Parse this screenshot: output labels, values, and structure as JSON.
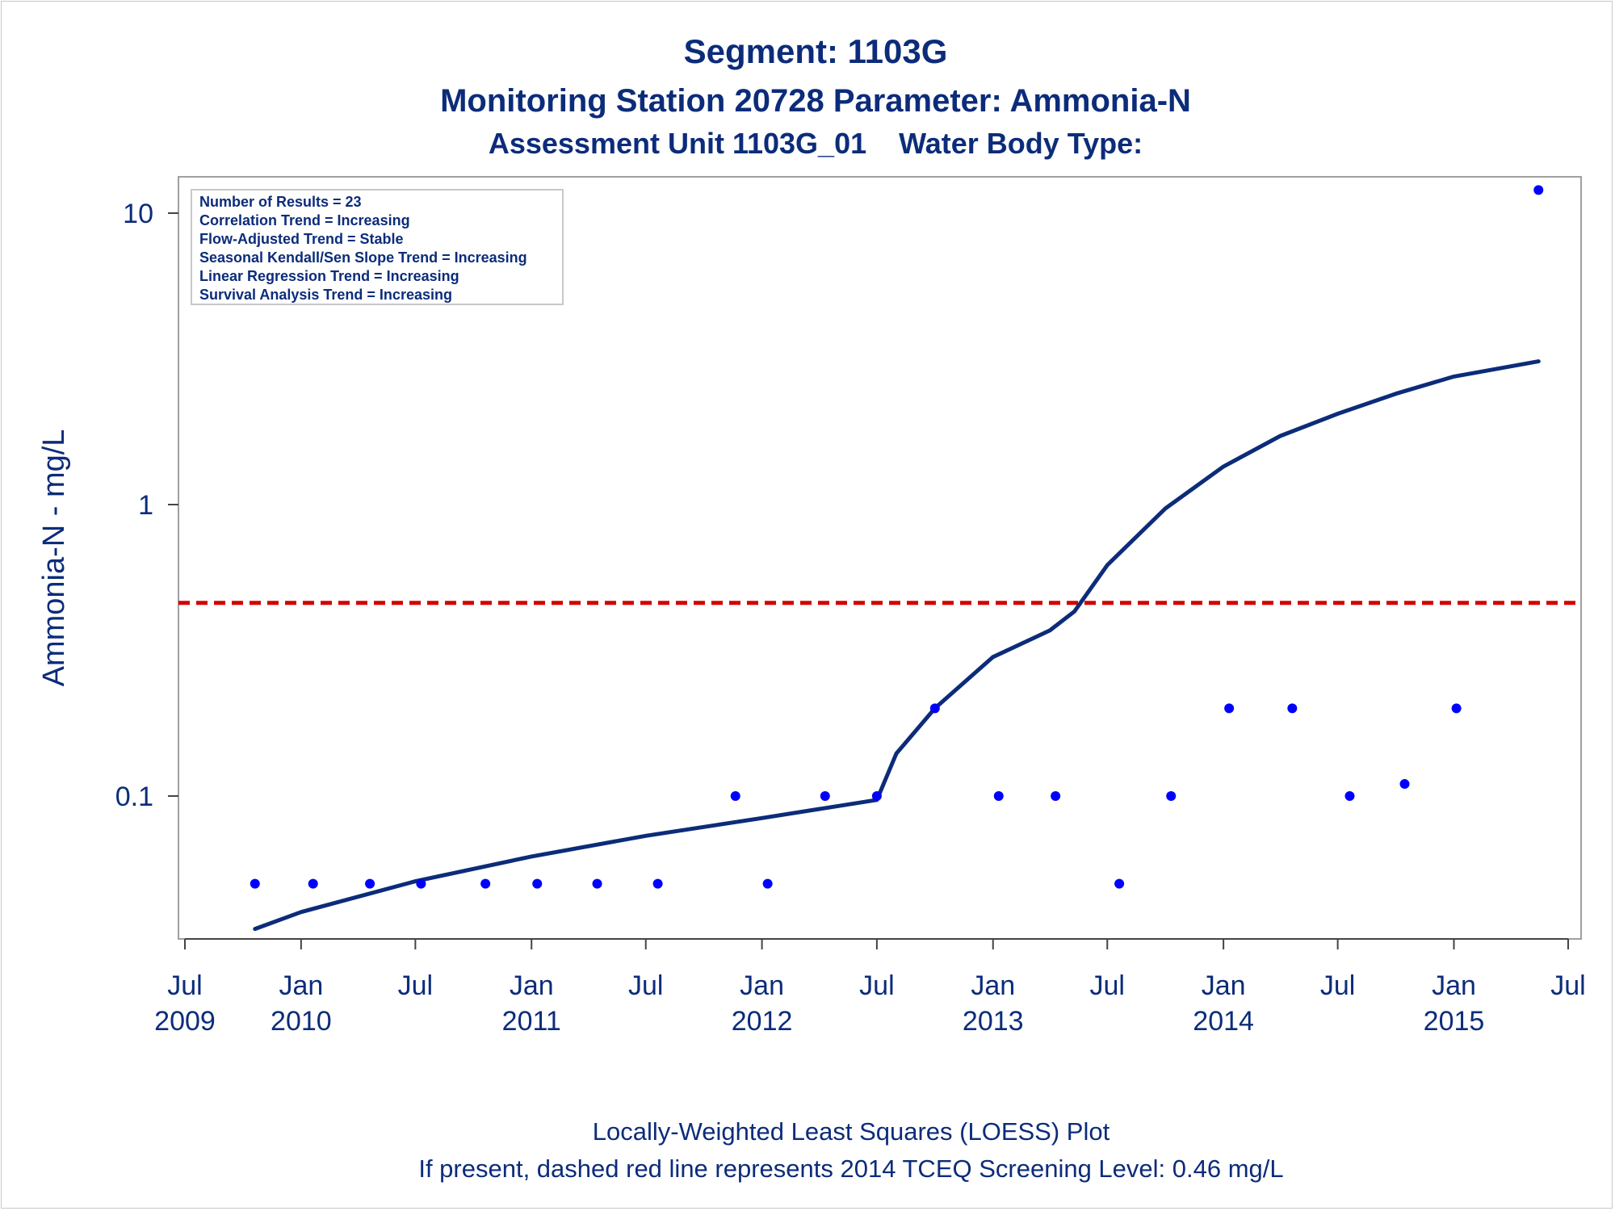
{
  "titles": {
    "line1": "Segment: 1103G",
    "line2": "Monitoring Station 20728 Parameter: Ammonia-N",
    "line3": "Assessment Unit 1103G_01    Water Body Type:"
  },
  "inset": [
    "Number of Results = 23",
    "Correlation Trend = Increasing",
    "Flow-Adjusted Trend = Stable",
    "Seasonal Kendall/Sen Slope Trend = Increasing",
    "Linear Regression Trend = Increasing",
    "Survival Analysis Trend = Increasing"
  ],
  "footnotes": [
    "Locally-Weighted Least Squares (LOESS) Plot",
    "If present, dashed red line represents 2014 TCEQ Screening Level: 0.46 mg/L"
  ],
  "colors": {
    "title": "#0c2c7a",
    "points": "#0000ff",
    "loess": "#0c2c7a",
    "reference": "#d40000",
    "frame": "#a0a0a0"
  },
  "chart_data": {
    "type": "scatter",
    "ylabel": "Ammonia-N - mg/L",
    "xlabel": "",
    "y_scale": "log",
    "ylim": [
      0.032,
      13
    ],
    "xlim": [
      "2009-07-01",
      "2015-07-01"
    ],
    "x_ticks": [
      {
        "date": "2009-07-01",
        "month": "Jul",
        "year": "2009"
      },
      {
        "date": "2010-01-01",
        "month": "Jan",
        "year": "2010"
      },
      {
        "date": "2010-07-01",
        "month": "Jul",
        "year": ""
      },
      {
        "date": "2011-01-01",
        "month": "Jan",
        "year": "2011"
      },
      {
        "date": "2011-07-01",
        "month": "Jul",
        "year": ""
      },
      {
        "date": "2012-01-01",
        "month": "Jan",
        "year": "2012"
      },
      {
        "date": "2012-07-01",
        "month": "Jul",
        "year": ""
      },
      {
        "date": "2013-01-01",
        "month": "Jan",
        "year": "2013"
      },
      {
        "date": "2013-07-01",
        "month": "Jul",
        "year": ""
      },
      {
        "date": "2014-01-01",
        "month": "Jan",
        "year": "2014"
      },
      {
        "date": "2014-07-01",
        "month": "Jul",
        "year": ""
      },
      {
        "date": "2015-01-01",
        "month": "Jan",
        "year": "2015"
      },
      {
        "date": "2015-07-01",
        "month": "Jul",
        "year": ""
      }
    ],
    "y_ticks": [
      {
        "value": 0.1,
        "label": "0.1"
      },
      {
        "value": 1,
        "label": "1"
      },
      {
        "value": 10,
        "label": "10"
      }
    ],
    "reference_line": {
      "y": 0.46,
      "style": "dashed",
      "color": "#d40000"
    },
    "series": [
      {
        "type": "scatter",
        "points": [
          {
            "x": "2009-10-20",
            "y": 0.05
          },
          {
            "x": "2010-01-20",
            "y": 0.05
          },
          {
            "x": "2010-04-20",
            "y": 0.05
          },
          {
            "x": "2010-07-10",
            "y": 0.05
          },
          {
            "x": "2010-10-20",
            "y": 0.05
          },
          {
            "x": "2011-01-10",
            "y": 0.05
          },
          {
            "x": "2011-04-15",
            "y": 0.05
          },
          {
            "x": "2011-07-20",
            "y": 0.05
          },
          {
            "x": "2011-11-20",
            "y": 0.1
          },
          {
            "x": "2012-01-10",
            "y": 0.05
          },
          {
            "x": "2012-04-10",
            "y": 0.1
          },
          {
            "x": "2012-07-01",
            "y": 0.1
          },
          {
            "x": "2012-10-01",
            "y": 0.2
          },
          {
            "x": "2013-01-10",
            "y": 0.1
          },
          {
            "x": "2013-04-10",
            "y": 0.1
          },
          {
            "x": "2013-07-20",
            "y": 0.05
          },
          {
            "x": "2013-10-10",
            "y": 0.1
          },
          {
            "x": "2014-01-10",
            "y": 0.2
          },
          {
            "x": "2014-04-20",
            "y": 0.2
          },
          {
            "x": "2014-07-20",
            "y": 0.1
          },
          {
            "x": "2014-10-15",
            "y": 0.11
          },
          {
            "x": "2015-01-05",
            "y": 0.2
          },
          {
            "x": "2015-05-15",
            "y": 12
          }
        ]
      },
      {
        "type": "line",
        "points": [
          {
            "x": "2009-10-20",
            "y": 0.035
          },
          {
            "x": "2010-01-01",
            "y": 0.04
          },
          {
            "x": "2010-07-01",
            "y": 0.051
          },
          {
            "x": "2011-01-01",
            "y": 0.062
          },
          {
            "x": "2011-07-01",
            "y": 0.073
          },
          {
            "x": "2012-01-01",
            "y": 0.084
          },
          {
            "x": "2012-07-01",
            "y": 0.097
          },
          {
            "x": "2012-08-01",
            "y": 0.14
          },
          {
            "x": "2012-10-01",
            "y": 0.2
          },
          {
            "x": "2013-01-01",
            "y": 0.3
          },
          {
            "x": "2013-04-01",
            "y": 0.37
          },
          {
            "x": "2013-05-10",
            "y": 0.43
          },
          {
            "x": "2013-07-01",
            "y": 0.62
          },
          {
            "x": "2013-10-01",
            "y": 0.97
          },
          {
            "x": "2014-01-01",
            "y": 1.35
          },
          {
            "x": "2014-04-01",
            "y": 1.72
          },
          {
            "x": "2014-07-01",
            "y": 2.05
          },
          {
            "x": "2014-10-01",
            "y": 2.4
          },
          {
            "x": "2015-01-01",
            "y": 2.75
          },
          {
            "x": "2015-05-15",
            "y": 3.1
          }
        ]
      }
    ]
  }
}
